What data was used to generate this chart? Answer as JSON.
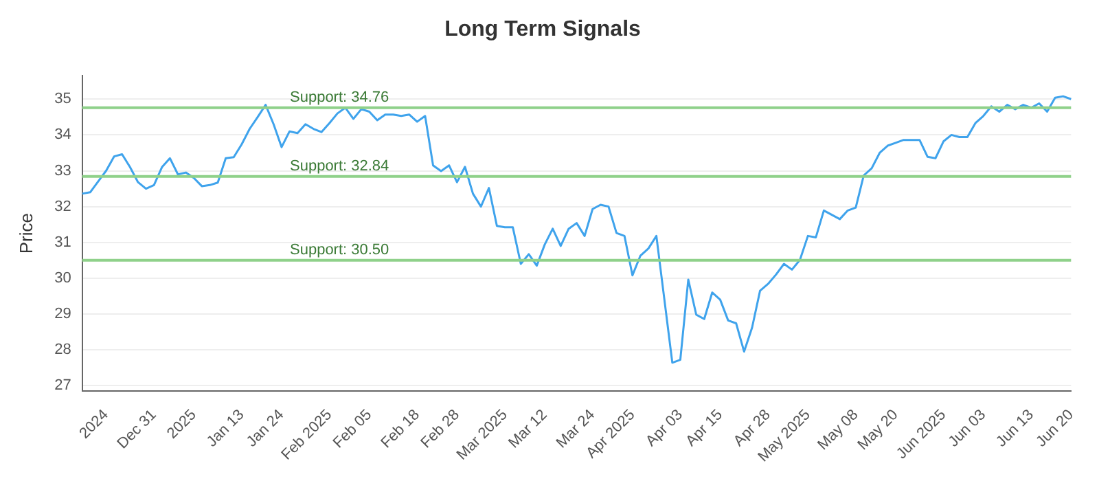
{
  "chart_data": {
    "type": "line",
    "title": "Long Term Signals",
    "ylabel": "Price",
    "categories": [
      null,
      null,
      null,
      "2024",
      null,
      null,
      null,
      null,
      null,
      "Dec 31",
      null,
      null,
      null,
      null,
      "2025",
      null,
      null,
      null,
      null,
      null,
      "Jan 13",
      null,
      null,
      null,
      null,
      "Jan 24",
      null,
      null,
      null,
      null,
      null,
      "Feb 2025",
      null,
      null,
      null,
      null,
      "Feb 05",
      null,
      null,
      null,
      null,
      null,
      "Feb 18",
      null,
      null,
      null,
      null,
      "Feb 28",
      null,
      null,
      null,
      null,
      null,
      "Mar 2025",
      null,
      null,
      null,
      null,
      "Mar 12",
      null,
      null,
      null,
      null,
      null,
      "Mar 24",
      null,
      null,
      null,
      null,
      "Apr 2025",
      null,
      null,
      null,
      null,
      null,
      "Apr 03",
      null,
      null,
      null,
      null,
      "Apr 15",
      null,
      null,
      null,
      null,
      null,
      "Apr 28",
      null,
      null,
      null,
      null,
      "May 2025",
      null,
      null,
      null,
      null,
      null,
      "May 08",
      null,
      null,
      null,
      null,
      "May 20",
      null,
      null,
      null,
      null,
      null,
      "Jun 2025",
      null,
      null,
      null,
      null,
      "Jun 03",
      null,
      null,
      null,
      null,
      null,
      "Jun 13",
      null,
      null,
      null,
      null,
      "Jun 20"
    ],
    "series": [
      {
        "color": "#3fa3ec",
        "values": [
          32.36,
          32.4,
          32.7,
          33.0,
          33.4,
          33.46,
          33.1,
          32.68,
          32.5,
          32.6,
          33.1,
          33.35,
          32.9,
          32.95,
          32.8,
          32.57,
          32.6,
          32.67,
          33.35,
          33.38,
          33.74,
          34.17,
          34.5,
          34.84,
          34.3,
          33.66,
          34.1,
          34.05,
          34.3,
          34.17,
          34.08,
          34.33,
          34.6,
          34.76,
          34.45,
          34.72,
          34.65,
          34.41,
          34.57,
          34.57,
          34.53,
          34.57,
          34.37,
          34.53,
          33.15,
          32.99,
          33.15,
          32.68,
          33.11,
          32.36,
          32.0,
          32.52,
          31.46,
          31.42,
          31.42,
          30.4,
          30.67,
          30.35,
          30.94,
          31.38,
          30.9,
          31.38,
          31.54,
          31.18,
          31.93,
          32.05,
          32.0,
          31.26,
          31.18,
          30.08,
          30.63,
          30.83,
          31.18,
          29.41,
          27.64,
          27.72,
          29.96,
          28.98,
          28.86,
          29.6,
          29.4,
          28.82,
          28.74,
          27.95,
          28.62,
          29.65,
          29.84,
          30.1,
          30.4,
          30.24,
          30.51,
          31.18,
          31.14,
          31.89,
          31.77,
          31.65,
          31.89,
          31.97,
          32.87,
          33.07,
          33.5,
          33.7,
          33.78,
          33.86,
          33.86,
          33.86,
          33.39,
          33.35,
          33.82,
          34.0,
          33.94,
          33.94,
          34.33,
          34.53,
          34.8,
          34.65,
          34.84,
          34.72,
          34.84,
          34.76,
          34.88,
          34.65,
          35.04,
          35.08,
          35.0
        ]
      }
    ],
    "ylim": [
      26.85,
      35.65
    ],
    "yticks": [
      27,
      28,
      29,
      30,
      31,
      32,
      33,
      34,
      35
    ],
    "grid": "y",
    "legend": false,
    "marker": "none",
    "line_style": "solid",
    "ref_lines": [
      {
        "axis": "y",
        "value": 34.76,
        "label": "Support: 34.76",
        "color": "#8fd18a"
      },
      {
        "axis": "y",
        "value": 32.84,
        "label": "Support: 32.84",
        "color": "#8fd18a"
      },
      {
        "axis": "y",
        "value": 30.5,
        "label": "Support: 30.50",
        "color": "#8fd18a"
      }
    ]
  }
}
